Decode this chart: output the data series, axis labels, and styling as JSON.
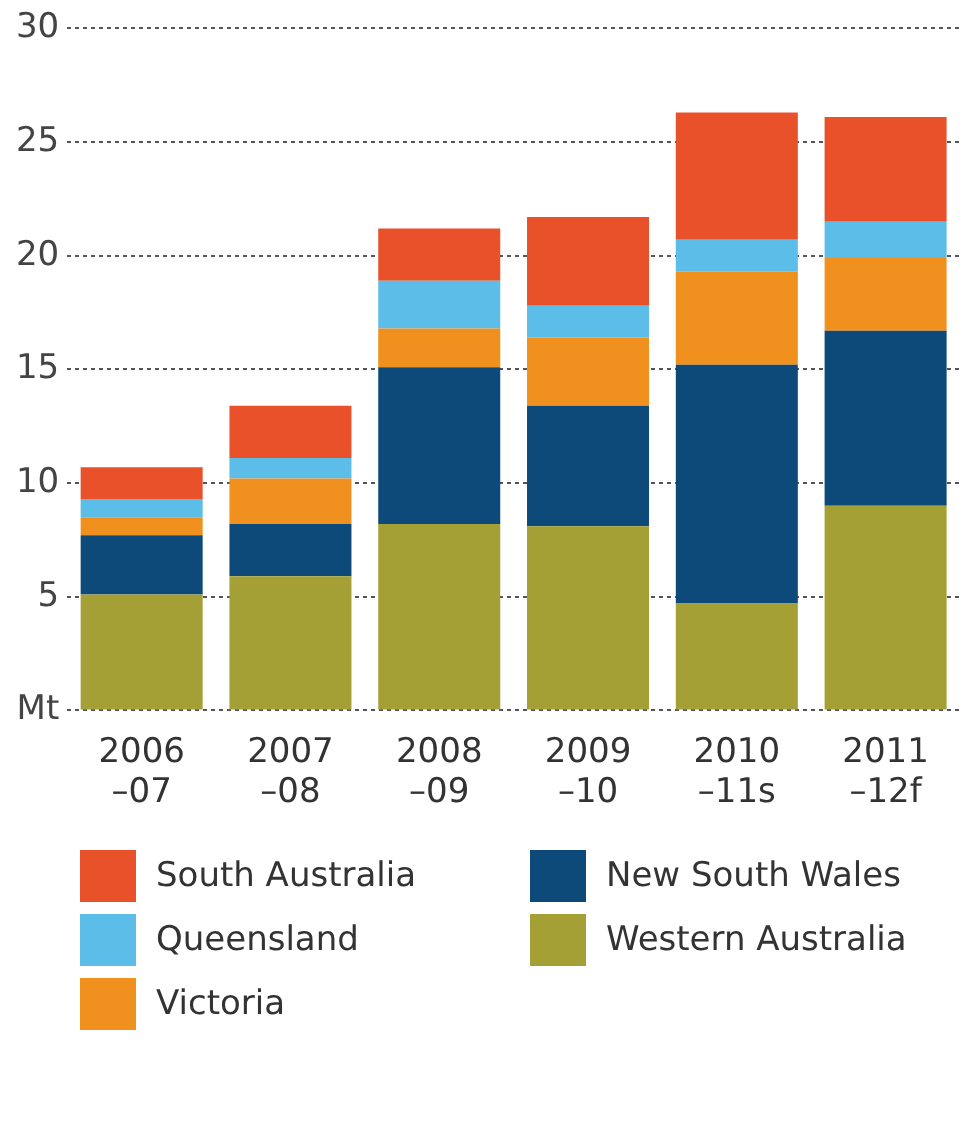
{
  "chart_data": {
    "type": "bar",
    "stacked": true,
    "categories": [
      "2006 –07",
      "2007 –08",
      "2008 –09",
      "2009 –10",
      "2010 –11s",
      "2011 –12f"
    ],
    "series": [
      {
        "name": "Western Australia",
        "color": "#a4a035",
        "values": [
          5.1,
          5.9,
          8.2,
          8.1,
          4.7,
          9.0
        ]
      },
      {
        "name": "New South Wales",
        "color": "#0d4a7a",
        "values": [
          2.6,
          2.3,
          6.9,
          5.3,
          10.5,
          7.7
        ]
      },
      {
        "name": "Victoria",
        "color": "#f0901e",
        "values": [
          0.8,
          2.0,
          1.7,
          3.0,
          4.1,
          3.2
        ]
      },
      {
        "name": "Queensland",
        "color": "#5bbde8",
        "values": [
          0.8,
          0.9,
          2.1,
          1.4,
          1.4,
          1.6
        ]
      },
      {
        "name": "South Australia",
        "color": "#e8512a",
        "values": [
          1.4,
          2.3,
          2.3,
          3.9,
          5.6,
          4.6
        ]
      }
    ],
    "ylim": [
      0,
      30
    ],
    "yticks": [
      {
        "value": 0,
        "label": "Mt"
      },
      5,
      10,
      15,
      20,
      25,
      30
    ],
    "grid": "y",
    "legend": "bottom"
  }
}
